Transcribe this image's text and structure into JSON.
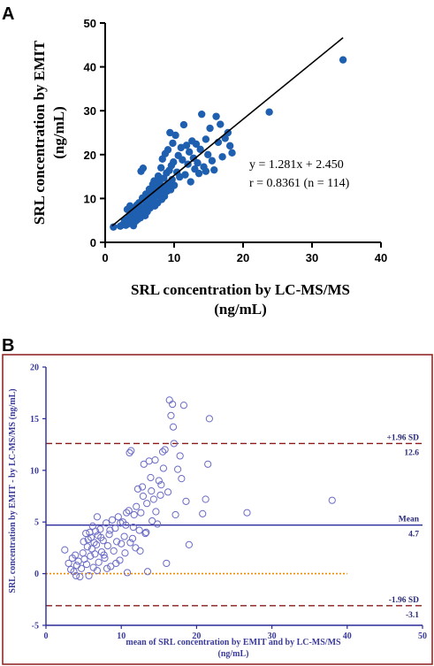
{
  "panel_a_letter": "A",
  "panel_b_letter": "B",
  "colors": {
    "a_points": "#1f5fb0",
    "b_points": "#6b6bc6",
    "b_border": "#8b1a1a",
    "b_mean_line": "#2a2a9a",
    "b_sd_line": "#8b1a1a",
    "b_zero_line": "#f08c00"
  },
  "chart_data": [
    {
      "type": "scatter",
      "panel": "A",
      "xlabel": [
        "SRL concentration by LC-MS/MS",
        "(ng/mL)"
      ],
      "ylabel": [
        "SRL concentration by EMIT",
        "(ng/mL)"
      ],
      "xlim": [
        0,
        40
      ],
      "ylim": [
        0,
        50
      ],
      "x_ticks": [
        "0",
        "10",
        "20",
        "30",
        "40"
      ],
      "y_ticks": [
        "0",
        "10",
        "20",
        "30",
        "40",
        "50"
      ],
      "regression": {
        "slope": 1.281,
        "intercept": 2.45,
        "x_range": [
          1,
          34.5
        ]
      },
      "annotations": [
        "y = 1.281x + 2.450",
        "r = 0.8361 (n = 114)"
      ],
      "points": [
        [
          1.2,
          3.5
        ],
        [
          2.2,
          3.7
        ],
        [
          2.5,
          4.0
        ],
        [
          2.8,
          5.1
        ],
        [
          3.0,
          3.9
        ],
        [
          3.2,
          7.5
        ],
        [
          3.3,
          4.2
        ],
        [
          3.5,
          6.0
        ],
        [
          3.6,
          8.3
        ],
        [
          3.8,
          4.5
        ],
        [
          3.9,
          7.0
        ],
        [
          4.0,
          6.5
        ],
        [
          4.1,
          3.8
        ],
        [
          4.2,
          5.5
        ],
        [
          4.3,
          7.9
        ],
        [
          4.4,
          4.8
        ],
        [
          4.5,
          6.2
        ],
        [
          4.6,
          8.5
        ],
        [
          4.7,
          5.2
        ],
        [
          4.8,
          7.3
        ],
        [
          4.9,
          9.0
        ],
        [
          5.0,
          6.8
        ],
        [
          5.1,
          5.6
        ],
        [
          5.2,
          16.2
        ],
        [
          5.3,
          8.0
        ],
        [
          5.4,
          10.1
        ],
        [
          5.5,
          16.9
        ],
        [
          5.6,
          7.5
        ],
        [
          5.7,
          9.6
        ],
        [
          5.8,
          6.1
        ],
        [
          5.9,
          11.0
        ],
        [
          6.0,
          8.6
        ],
        [
          6.1,
          7.0
        ],
        [
          6.2,
          10.4
        ],
        [
          6.3,
          9.2
        ],
        [
          6.4,
          12.1
        ],
        [
          6.5,
          7.8
        ],
        [
          6.6,
          11.5
        ],
        [
          6.7,
          8.9
        ],
        [
          6.8,
          10.0
        ],
        [
          6.9,
          13.2
        ],
        [
          7.0,
          9.5
        ],
        [
          7.1,
          14.0
        ],
        [
          7.2,
          8.3
        ],
        [
          7.3,
          11.8
        ],
        [
          7.4,
          10.6
        ],
        [
          7.5,
          12.6
        ],
        [
          7.6,
          9.0
        ],
        [
          7.7,
          15.1
        ],
        [
          7.8,
          10.9
        ],
        [
          7.9,
          13.6
        ],
        [
          8.0,
          11.3
        ],
        [
          8.1,
          17.0
        ],
        [
          8.2,
          9.8
        ],
        [
          8.3,
          19.0
        ],
        [
          8.4,
          12.3
        ],
        [
          8.5,
          14.6
        ],
        [
          8.6,
          10.5
        ],
        [
          8.7,
          20.2
        ],
        [
          8.8,
          12.9
        ],
        [
          8.9,
          15.8
        ],
        [
          9.0,
          11.7
        ],
        [
          9.1,
          21.1
        ],
        [
          9.2,
          13.4
        ],
        [
          9.3,
          16.4
        ],
        [
          9.4,
          25.0
        ],
        [
          9.5,
          12.0
        ],
        [
          9.6,
          17.5
        ],
        [
          9.7,
          14.3
        ],
        [
          9.8,
          22.6
        ],
        [
          9.9,
          18.3
        ],
        [
          10.0,
          13.0
        ],
        [
          10.2,
          24.4
        ],
        [
          10.4,
          16.0
        ],
        [
          10.6,
          19.8
        ],
        [
          10.8,
          14.9
        ],
        [
          11.0,
          21.6
        ],
        [
          11.2,
          18.8
        ],
        [
          11.4,
          26.8
        ],
        [
          11.6,
          15.4
        ],
        [
          11.8,
          22.1
        ],
        [
          12.0,
          17.8
        ],
        [
          12.2,
          20.6
        ],
        [
          12.4,
          13.8
        ],
        [
          12.6,
          23.1
        ],
        [
          12.8,
          19.2
        ],
        [
          13.0,
          16.7
        ],
        [
          13.2,
          22.4
        ],
        [
          13.4,
          18.1
        ],
        [
          13.6,
          15.7
        ],
        [
          13.8,
          21.2
        ],
        [
          14.0,
          29.2
        ],
        [
          14.3,
          17.2
        ],
        [
          14.6,
          23.5
        ],
        [
          14.9,
          20.0
        ],
        [
          15.2,
          26.0
        ],
        [
          15.5,
          18.6
        ],
        [
          15.8,
          16.5
        ],
        [
          16.1,
          28.7
        ],
        [
          16.4,
          22.8
        ],
        [
          16.7,
          26.9
        ],
        [
          17.0,
          19.5
        ],
        [
          17.4,
          23.7
        ],
        [
          17.8,
          25.0
        ],
        [
          18.1,
          22.0
        ],
        [
          18.4,
          20.4
        ],
        [
          10.0,
          13.0
        ],
        [
          7.2,
          11.0
        ],
        [
          6.2,
          9.0
        ],
        [
          5.1,
          7.2
        ],
        [
          3.7,
          5.5
        ],
        [
          14.6,
          16.2
        ],
        [
          23.8,
          29.7
        ],
        [
          34.5,
          41.6
        ]
      ]
    },
    {
      "type": "scatter",
      "panel": "B",
      "xlabel": [
        "mean of SRL concentration by EMIT and by LC-MS/MS",
        "(ng/mL)"
      ],
      "ylabel": "SRL concentration by EMIT - by LC-MS/MS (ng/mL)",
      "xlim": [
        0,
        50
      ],
      "ylim": [
        -5,
        20
      ],
      "x_ticks": [
        "0",
        "10",
        "20",
        "30",
        "40",
        "50"
      ],
      "y_ticks": [
        "-5",
        "0",
        "5",
        "10",
        "15",
        "20"
      ],
      "reference_lines": [
        {
          "label": "+1.96 SD",
          "value_label": "12.6",
          "y": 12.6,
          "style": "dashed"
        },
        {
          "label": "Mean",
          "value_label": "4.7",
          "y": 4.7,
          "style": "solid"
        },
        {
          "label": "-1.96 SD",
          "value_label": "-3.1",
          "y": -3.1,
          "style": "dashed"
        },
        {
          "label": "",
          "value_label": "",
          "y": 0,
          "style": "dotted",
          "x_end": 40
        }
      ],
      "points": [
        [
          2.5,
          2.3
        ],
        [
          3.0,
          1.0
        ],
        [
          3.3,
          0.4
        ],
        [
          3.5,
          1.5
        ],
        [
          3.7,
          0.2
        ],
        [
          3.9,
          1.8
        ],
        [
          4.1,
          0.8
        ],
        [
          4.3,
          1.2
        ],
        [
          4.5,
          -0.3
        ],
        [
          4.7,
          0.5
        ],
        [
          4.9,
          2.0
        ],
        [
          5.1,
          1.4
        ],
        [
          5.3,
          3.9
        ],
        [
          5.4,
          0.9
        ],
        [
          5.5,
          2.6
        ],
        [
          5.6,
          3.3
        ],
        [
          5.7,
          -0.2
        ],
        [
          5.8,
          4.0
        ],
        [
          5.9,
          1.7
        ],
        [
          6.0,
          3.5
        ],
        [
          6.1,
          2.4
        ],
        [
          6.2,
          4.6
        ],
        [
          6.3,
          0.6
        ],
        [
          6.4,
          3.0
        ],
        [
          6.5,
          1.9
        ],
        [
          6.6,
          4.1
        ],
        [
          6.7,
          2.8
        ],
        [
          6.8,
          0.3
        ],
        [
          6.9,
          3.7
        ],
        [
          7.0,
          1.1
        ],
        [
          7.2,
          4.3
        ],
        [
          7.4,
          2.1
        ],
        [
          7.6,
          3.2
        ],
        [
          7.8,
          1.5
        ],
        [
          8.0,
          4.9
        ],
        [
          8.2,
          2.7
        ],
        [
          8.4,
          3.8
        ],
        [
          8.6,
          0.7
        ],
        [
          8.8,
          5.2
        ],
        [
          9.0,
          2.2
        ],
        [
          9.2,
          4.4
        ],
        [
          9.4,
          3.1
        ],
        [
          9.6,
          5.5
        ],
        [
          9.8,
          1.3
        ],
        [
          10.0,
          2.9
        ],
        [
          10.2,
          5.0
        ],
        [
          10.4,
          3.6
        ],
        [
          10.6,
          4.7
        ],
        [
          10.8,
          0.1
        ],
        [
          11.0,
          6.1
        ],
        [
          11.1,
          11.7
        ],
        [
          11.3,
          11.9
        ],
        [
          11.5,
          3.4
        ],
        [
          11.7,
          5.7
        ],
        [
          11.9,
          2.5
        ],
        [
          12.0,
          6.5
        ],
        [
          12.2,
          8.2
        ],
        [
          12.4,
          4.2
        ],
        [
          12.6,
          5.9
        ],
        [
          12.8,
          8.4
        ],
        [
          13.0,
          10.6
        ],
        [
          13.2,
          3.9
        ],
        [
          13.4,
          6.8
        ],
        [
          13.5,
          0.2
        ],
        [
          13.7,
          10.9
        ],
        [
          13.9,
          9.3
        ],
        [
          14.1,
          5.1
        ],
        [
          14.3,
          7.2
        ],
        [
          14.5,
          11.0
        ],
        [
          14.8,
          4.8
        ],
        [
          15.0,
          9.0
        ],
        [
          15.2,
          7.6
        ],
        [
          15.5,
          11.8
        ],
        [
          15.8,
          12.0
        ],
        [
          16.0,
          1.0
        ],
        [
          16.2,
          7.9
        ],
        [
          16.4,
          16.8
        ],
        [
          16.6,
          15.3
        ],
        [
          16.8,
          16.4
        ],
        [
          17.0,
          12.6
        ],
        [
          17.2,
          5.7
        ],
        [
          17.5,
          10.1
        ],
        [
          17.8,
          11.4
        ],
        [
          18.0,
          9.2
        ],
        [
          18.3,
          16.3
        ],
        [
          18.6,
          7.0
        ],
        [
          19.0,
          2.8
        ],
        [
          20.8,
          5.8
        ],
        [
          21.2,
          7.2
        ],
        [
          21.5,
          10.6
        ],
        [
          21.7,
          15.0
        ],
        [
          26.7,
          5.9
        ],
        [
          38.0,
          7.1
        ],
        [
          7.7,
          1.8
        ],
        [
          8.1,
          0.5
        ],
        [
          9.3,
          1.0
        ],
        [
          10.5,
          2.0
        ],
        [
          11.2,
          3.0
        ],
        [
          12.5,
          2.2
        ],
        [
          13.3,
          4.0
        ],
        [
          14.6,
          6.0
        ],
        [
          15.3,
          8.6
        ],
        [
          6.8,
          5.5
        ],
        [
          8.5,
          4.2
        ],
        [
          9.9,
          4.9
        ],
        [
          10.7,
          5.9
        ],
        [
          11.6,
          4.5
        ],
        [
          12.9,
          7.5
        ],
        [
          14.0,
          8.0
        ],
        [
          15.6,
          10.2
        ],
        [
          16.9,
          14.2
        ],
        [
          5.0,
          3.1
        ],
        [
          4.0,
          -0.2
        ],
        [
          7.3,
          3.5
        ]
      ]
    }
  ]
}
